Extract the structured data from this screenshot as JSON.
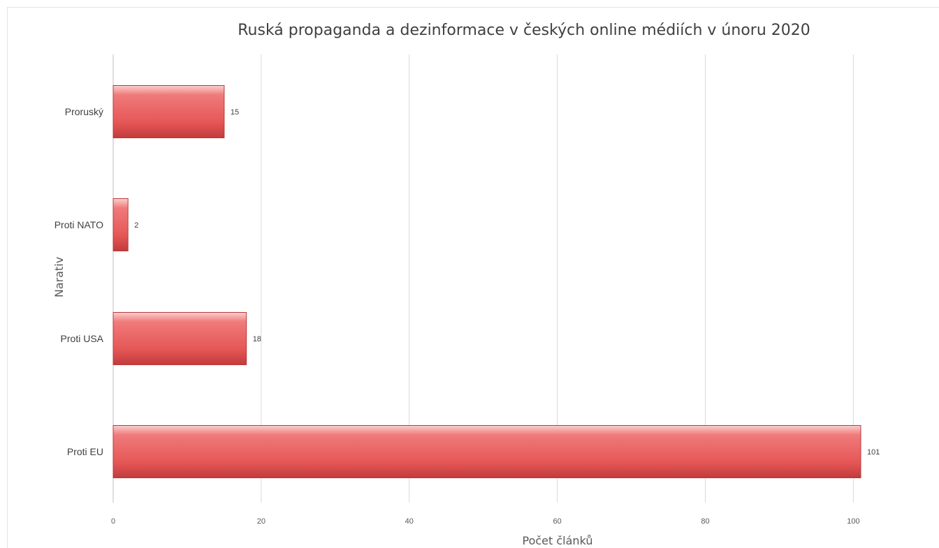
{
  "chart_data": {
    "type": "bar",
    "orientation": "horizontal",
    "title": "Ruská propaganda a dezinformace v českých online médiích v únoru 2020",
    "xlabel": "Počet článků",
    "ylabel": "Narativ",
    "categories": [
      "Proruský",
      "Proti NATO",
      "Proti USA",
      "Proti EU"
    ],
    "values": [
      15,
      2,
      18,
      101
    ],
    "data_labels": [
      "15",
      "2",
      "18",
      "101"
    ],
    "xlim": [
      0,
      110
    ],
    "xticks": [
      0,
      20,
      40,
      60,
      80,
      100
    ],
    "xtick_labels": [
      "0",
      "20",
      "40",
      "60",
      "80",
      "100"
    ],
    "grid": "vertical",
    "legend": "none",
    "bar_color": "#e85a5a"
  }
}
